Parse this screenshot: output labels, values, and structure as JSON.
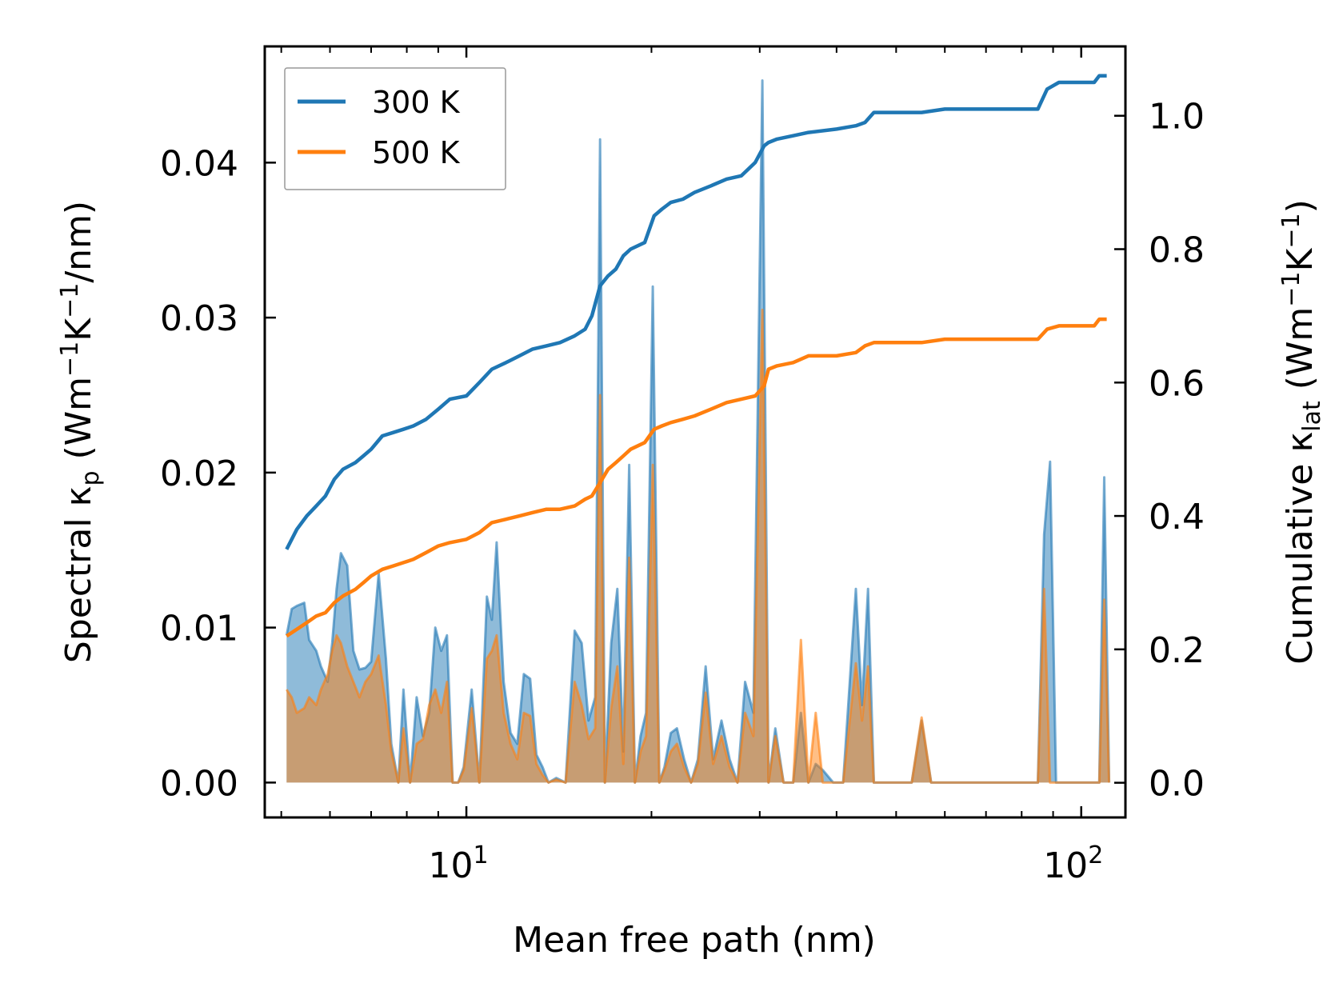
{
  "chart_data": {
    "type": "line",
    "xlabel": "Mean free path (nm)",
    "ylabel_left": {
      "prefix": "Spectral κ",
      "sub": "p",
      "suffix": " (Wm",
      "sup1": "−1",
      "mid": "K",
      "sup2": "−1",
      "end": "/nm)"
    },
    "ylabel_right": {
      "prefix": "Cumulative κ",
      "sub": "lat",
      "suffix": " (Wm",
      "sup1": "−1",
      "mid": "K",
      "sup2": "−1",
      "end": ")"
    },
    "x_scale": "log",
    "xlim": [
      4.7,
      118
    ],
    "ylim_left": [
      -0.00225,
      0.0475
    ],
    "ylim_right": [
      -0.052,
      1.104
    ],
    "x_ticks": [
      {
        "value": 10,
        "base": "10",
        "exp": "1"
      },
      {
        "value": 100,
        "base": "10",
        "exp": "2"
      }
    ],
    "y_ticks_left": [
      "0.00",
      "0.01",
      "0.02",
      "0.03",
      "0.04"
    ],
    "y_ticks_right": [
      "0.0",
      "0.2",
      "0.4",
      "0.6",
      "0.8",
      "1.0"
    ],
    "legend": {
      "position": "top-left",
      "entries": [
        "300 K",
        "500 K"
      ]
    },
    "colors": {
      "c300": "#1f77b4",
      "c500": "#ff7f0e"
    },
    "cumulative_series": [
      {
        "name": "300 K",
        "x": [
          5.1,
          5.3,
          5.5,
          5.7,
          5.9,
          6.1,
          6.3,
          6.6,
          6.8,
          7.0,
          7.3,
          7.6,
          7.9,
          8.2,
          8.6,
          9.0,
          9.4,
          10.0,
          10.5,
          11.0,
          11.6,
          12.2,
          12.8,
          13.5,
          14.2,
          15.0,
          15.6,
          16.0,
          16.5,
          17.0,
          17.5,
          18.0,
          18.5,
          19.5,
          20.2,
          20.8,
          21.5,
          22.5,
          23.5,
          25.0,
          26.5,
          28.0,
          29.5,
          30.5,
          31.0,
          32.0,
          34.0,
          36.0,
          40.0,
          43.0,
          44.5,
          46.0,
          55.0,
          60.0,
          70.0,
          85.0,
          88.0,
          92.0,
          105.0,
          107.0,
          110.0
        ],
        "y": [
          0.35,
          0.38,
          0.4,
          0.415,
          0.43,
          0.455,
          0.47,
          0.48,
          0.49,
          0.5,
          0.52,
          0.525,
          0.53,
          0.535,
          0.545,
          0.56,
          0.575,
          0.58,
          0.6,
          0.62,
          0.63,
          0.64,
          0.65,
          0.655,
          0.66,
          0.67,
          0.68,
          0.7,
          0.745,
          0.76,
          0.77,
          0.79,
          0.8,
          0.81,
          0.85,
          0.86,
          0.87,
          0.875,
          0.885,
          0.895,
          0.905,
          0.91,
          0.93,
          0.955,
          0.96,
          0.965,
          0.97,
          0.975,
          0.98,
          0.985,
          0.99,
          1.005,
          1.005,
          1.01,
          1.01,
          1.01,
          1.04,
          1.05,
          1.05,
          1.06,
          1.06
        ]
      },
      {
        "name": "500 K",
        "x": [
          5.1,
          5.3,
          5.5,
          5.7,
          5.9,
          6.1,
          6.3,
          6.6,
          6.8,
          7.0,
          7.3,
          7.6,
          7.9,
          8.2,
          8.6,
          9.0,
          9.4,
          10.0,
          10.5,
          11.0,
          11.6,
          12.2,
          12.8,
          13.5,
          14.2,
          15.0,
          15.6,
          16.0,
          16.5,
          17.0,
          17.5,
          18.0,
          18.5,
          19.5,
          20.2,
          20.8,
          21.5,
          22.5,
          23.5,
          25.0,
          26.5,
          28.0,
          29.5,
          30.5,
          31.0,
          32.0,
          34.0,
          36.0,
          40.0,
          43.0,
          44.5,
          46.0,
          55.0,
          60.0,
          70.0,
          85.0,
          88.0,
          92.0,
          105.0,
          107.0,
          110.0
        ],
        "y": [
          0.22,
          0.23,
          0.24,
          0.25,
          0.255,
          0.27,
          0.28,
          0.29,
          0.3,
          0.31,
          0.32,
          0.325,
          0.33,
          0.335,
          0.345,
          0.355,
          0.36,
          0.365,
          0.375,
          0.39,
          0.395,
          0.4,
          0.405,
          0.41,
          0.41,
          0.415,
          0.425,
          0.43,
          0.45,
          0.47,
          0.48,
          0.49,
          0.5,
          0.51,
          0.53,
          0.535,
          0.54,
          0.545,
          0.55,
          0.56,
          0.57,
          0.575,
          0.58,
          0.595,
          0.62,
          0.625,
          0.63,
          0.64,
          0.64,
          0.645,
          0.655,
          0.66,
          0.66,
          0.665,
          0.665,
          0.665,
          0.68,
          0.685,
          0.685,
          0.695,
          0.695
        ]
      }
    ],
    "spectral_series": [
      {
        "name": "300 K",
        "x": [
          5.1,
          5.2,
          5.3,
          5.45,
          5.55,
          5.7,
          5.8,
          5.95,
          6.05,
          6.15,
          6.25,
          6.4,
          6.55,
          6.7,
          6.85,
          7.0,
          7.2,
          7.4,
          7.55,
          7.75,
          7.9,
          8.1,
          8.3,
          8.5,
          8.7,
          8.9,
          9.1,
          9.3,
          9.5,
          9.7,
          9.9,
          10.2,
          10.5,
          10.8,
          11.0,
          11.2,
          11.5,
          11.8,
          12.1,
          12.4,
          12.7,
          13.0,
          13.3,
          13.6,
          14.0,
          14.5,
          15.0,
          15.4,
          15.8,
          16.2,
          16.5,
          16.8,
          17.2,
          17.6,
          18.0,
          18.4,
          18.8,
          19.2,
          19.6,
          20.1,
          20.6,
          21.0,
          21.5,
          22.0,
          22.6,
          23.2,
          23.8,
          24.5,
          25.2,
          26.0,
          26.8,
          27.6,
          28.4,
          29.3,
          30.3,
          31.0,
          31.8,
          32.8,
          34.0,
          35.0,
          36.0,
          37.0,
          38.0,
          39.5,
          41.0,
          43.0,
          44.0,
          45.0,
          46.0,
          48.0,
          50.0,
          53.0,
          55.0,
          57.0,
          60.0,
          70.0,
          85.0,
          87.0,
          89.0,
          91.0,
          93.0,
          95.0,
          105.0,
          107.0,
          109.0,
          111.0
        ],
        "y": [
          0.0095,
          0.0112,
          0.0114,
          0.0116,
          0.0092,
          0.0085,
          0.0075,
          0.0065,
          0.009,
          0.0125,
          0.0148,
          0.014,
          0.0085,
          0.0073,
          0.0074,
          0.0078,
          0.0135,
          0.008,
          0.0025,
          0.0,
          0.006,
          0.0,
          0.0055,
          0.003,
          0.0045,
          0.01,
          0.0085,
          0.0095,
          0.0,
          0.0,
          0.001,
          0.006,
          0.0,
          0.012,
          0.0105,
          0.0155,
          0.0065,
          0.0032,
          0.0025,
          0.007,
          0.0067,
          0.0018,
          0.001,
          0.0,
          0.0003,
          0.0,
          0.0098,
          0.009,
          0.004,
          0.0055,
          0.0415,
          0.0,
          0.009,
          0.0125,
          0.002,
          0.0205,
          0.0,
          0.003,
          0.0045,
          0.032,
          0.0,
          0.001,
          0.0032,
          0.0035,
          0.0015,
          0.0,
          0.0015,
          0.0075,
          0.0015,
          0.004,
          0.0015,
          0.0,
          0.0065,
          0.0045,
          0.0453,
          0.0,
          0.0035,
          0.0,
          0.0,
          0.0045,
          0.0,
          0.0012,
          0.0008,
          0.0,
          0.0,
          0.0125,
          0.005,
          0.0125,
          0.0,
          0.0,
          0.0,
          0.0,
          0.004,
          0.0,
          0.0,
          0.0,
          0.0,
          0.016,
          0.0207,
          0.0,
          0.0,
          0.0,
          0.0,
          0.0,
          0.0197,
          0.0
        ],
        "alt_y": []
      },
      {
        "name": "500 K",
        "x": [
          5.1,
          5.2,
          5.3,
          5.45,
          5.55,
          5.7,
          5.8,
          5.95,
          6.05,
          6.15,
          6.25,
          6.4,
          6.55,
          6.7,
          6.85,
          7.0,
          7.2,
          7.4,
          7.55,
          7.75,
          7.9,
          8.1,
          8.3,
          8.5,
          8.7,
          8.9,
          9.1,
          9.3,
          9.5,
          9.7,
          9.9,
          10.2,
          10.5,
          10.8,
          11.0,
          11.2,
          11.5,
          11.8,
          12.1,
          12.4,
          12.7,
          13.0,
          13.3,
          13.6,
          14.0,
          14.5,
          15.0,
          15.4,
          15.8,
          16.2,
          16.5,
          16.8,
          17.2,
          17.6,
          18.0,
          18.4,
          18.8,
          19.2,
          19.6,
          20.1,
          20.6,
          21.0,
          21.5,
          22.0,
          22.6,
          23.2,
          23.8,
          24.5,
          25.2,
          26.0,
          26.8,
          27.6,
          28.4,
          29.3,
          30.3,
          31.0,
          31.8,
          32.8,
          34.0,
          35.0,
          36.0,
          37.0,
          38.0,
          39.5,
          41.0,
          43.0,
          44.0,
          45.0,
          46.0,
          48.0,
          50.0,
          53.0,
          55.0,
          57.0,
          60.0,
          70.0,
          85.0,
          87.0,
          89.0,
          91.0,
          93.0,
          95.0,
          105.0,
          107.0,
          109.0,
          111.0
        ],
        "y": [
          0.006,
          0.0055,
          0.0045,
          0.0048,
          0.0055,
          0.005,
          0.006,
          0.007,
          0.0085,
          0.0095,
          0.009,
          0.0075,
          0.0065,
          0.0055,
          0.0065,
          0.007,
          0.0082,
          0.005,
          0.002,
          0.0,
          0.0035,
          0.0,
          0.0025,
          0.0028,
          0.005,
          0.006,
          0.0045,
          0.0065,
          0.0,
          0.0,
          0.0008,
          0.0048,
          0.0,
          0.008,
          0.0085,
          0.0095,
          0.0045,
          0.0025,
          0.0015,
          0.0045,
          0.0043,
          0.0012,
          0.0005,
          0.0,
          0.0002,
          0.0,
          0.0065,
          0.005,
          0.0028,
          0.0035,
          0.025,
          0.0,
          0.0048,
          0.0075,
          0.0012,
          0.0145,
          0.0,
          0.002,
          0.003,
          0.0205,
          0.0,
          0.0008,
          0.002,
          0.0025,
          0.001,
          0.0,
          0.0012,
          0.0058,
          0.0012,
          0.003,
          0.001,
          0.0,
          0.0045,
          0.003,
          0.0305,
          0.0,
          0.003,
          0.0,
          0.0,
          0.0092,
          0.0,
          0.0045,
          0.0,
          0.0,
          0.0,
          0.0077,
          0.004,
          0.0075,
          0.0,
          0.0,
          0.0,
          0.0,
          0.0042,
          0.0,
          0.0,
          0.0,
          0.0,
          0.0125,
          0.0,
          0.0,
          0.0,
          0.0,
          0.0,
          0.0,
          0.0118,
          0.0
        ]
      }
    ]
  }
}
